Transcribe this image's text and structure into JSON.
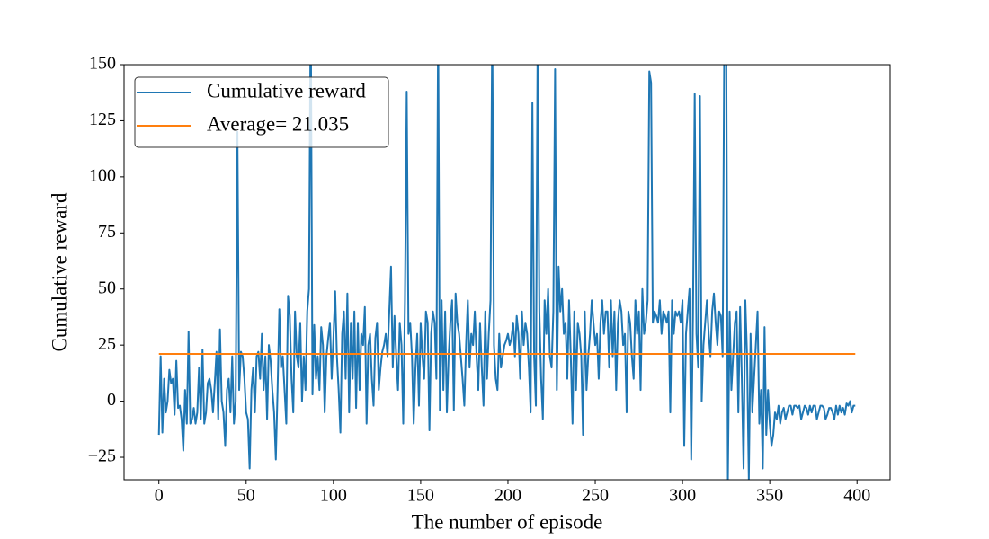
{
  "chart_data": {
    "type": "line",
    "xlabel": "The number of episode",
    "ylabel": "Cumulative reward",
    "xlim": [
      -19.95,
      418.95
    ],
    "ylim": [
      -35,
      150
    ],
    "xticks": [
      0,
      50,
      100,
      150,
      200,
      250,
      300,
      350,
      400
    ],
    "yticks": [
      {
        "value": -25,
        "label": "−25"
      },
      0,
      25,
      50,
      75,
      100,
      125,
      150
    ],
    "legend": "upper left",
    "grid": false,
    "series": [
      {
        "name": "Cumulative reward",
        "color": "#1f77b4",
        "values": [
          -15,
          20,
          -14,
          10,
          -5,
          0,
          14,
          8,
          10,
          -6,
          18,
          -3,
          -2,
          -8,
          -22,
          5,
          -10,
          31,
          -10,
          -8,
          -3,
          -10,
          -5,
          15,
          -8,
          23,
          -10,
          -5,
          8,
          10,
          5,
          -5,
          8,
          22,
          -8,
          32,
          0,
          -5,
          -20,
          5,
          10,
          -5,
          20,
          -10,
          0,
          120,
          5,
          22,
          20,
          10,
          -5,
          -8,
          -30,
          5,
          15,
          -5,
          20,
          22,
          10,
          30,
          5,
          20,
          -8,
          25,
          18,
          5,
          -5,
          -26,
          5,
          41,
          15,
          20,
          5,
          -10,
          47,
          38,
          10,
          -5,
          40,
          20,
          15,
          35,
          0,
          20,
          5,
          40,
          50,
          180,
          3,
          34,
          10,
          20,
          5,
          33,
          25,
          -5,
          20,
          28,
          35,
          10,
          28,
          49,
          20,
          5,
          -14,
          30,
          40,
          10,
          48,
          -5,
          35,
          10,
          40,
          -3,
          35,
          5,
          30,
          25,
          42,
          -10,
          25,
          30,
          10,
          -2,
          28,
          35,
          5,
          15,
          22,
          25,
          30,
          20,
          40,
          60,
          15,
          38,
          20,
          5,
          35,
          25,
          -10,
          45,
          138,
          30,
          35,
          20,
          -10,
          15,
          30,
          -2,
          35,
          20,
          10,
          40,
          35,
          -13,
          30,
          40,
          35,
          10,
          170,
          -4,
          45,
          5,
          40,
          -5,
          20,
          35,
          45,
          -4,
          48,
          35,
          30,
          20,
          10,
          -2,
          25,
          45,
          15,
          30,
          25,
          40,
          20,
          5,
          35,
          15,
          -2,
          40,
          10,
          30,
          45,
          170,
          25,
          10,
          5,
          30,
          15,
          20,
          25,
          27,
          30,
          25,
          28,
          35,
          20,
          38,
          30,
          10,
          40,
          25,
          35,
          30,
          15,
          -5,
          133,
          20,
          -2,
          165,
          40,
          10,
          -8,
          45,
          30,
          50,
          20,
          15,
          40,
          148,
          5,
          60,
          40,
          50,
          30,
          35,
          10,
          45,
          20,
          -10,
          40,
          5,
          35,
          30,
          20,
          -15,
          40,
          5,
          20,
          30,
          45,
          35,
          25,
          30,
          10,
          35,
          45,
          30,
          40,
          40,
          15,
          45,
          20,
          40,
          5,
          35,
          45,
          40,
          25,
          30,
          -5,
          40,
          35,
          20,
          10,
          45,
          30,
          40,
          5,
          50,
          30,
          35,
          45,
          147,
          142,
          35,
          40,
          38,
          35,
          45,
          30,
          40,
          38,
          35,
          40,
          -5,
          45,
          30,
          40,
          38,
          40,
          35,
          45,
          -20,
          30,
          40,
          50,
          -26,
          38,
          137,
          30,
          15,
          136,
          0,
          25,
          35,
          45,
          30,
          20,
          40,
          48,
          35,
          25,
          40,
          38,
          20,
          170,
          180,
          -35,
          40,
          5,
          20,
          35,
          40,
          -5,
          42,
          10,
          -30,
          45,
          20,
          -35,
          30,
          -5,
          10,
          25,
          40,
          -10,
          5,
          -30,
          33,
          -15,
          5,
          -10,
          -20,
          -15,
          -5,
          -8,
          -2,
          -10,
          -5,
          -3,
          -8,
          -5,
          -2,
          -2,
          -6,
          -2,
          -2,
          -3,
          -2,
          -8,
          -5,
          -2,
          -3,
          -6,
          -2,
          -5,
          -2,
          -2,
          -8,
          -5,
          -2,
          -2,
          -3,
          -8,
          -6,
          -3,
          -3,
          -5,
          -8,
          -2,
          -6,
          -2,
          -5,
          -3,
          -6,
          -1,
          -2,
          0,
          -5,
          -2,
          -2
        ]
      },
      {
        "name": "Average= 21.035",
        "color": "#ff7f0e",
        "x": [
          0,
          399
        ],
        "values": [
          21.035,
          21.035
        ]
      }
    ]
  }
}
